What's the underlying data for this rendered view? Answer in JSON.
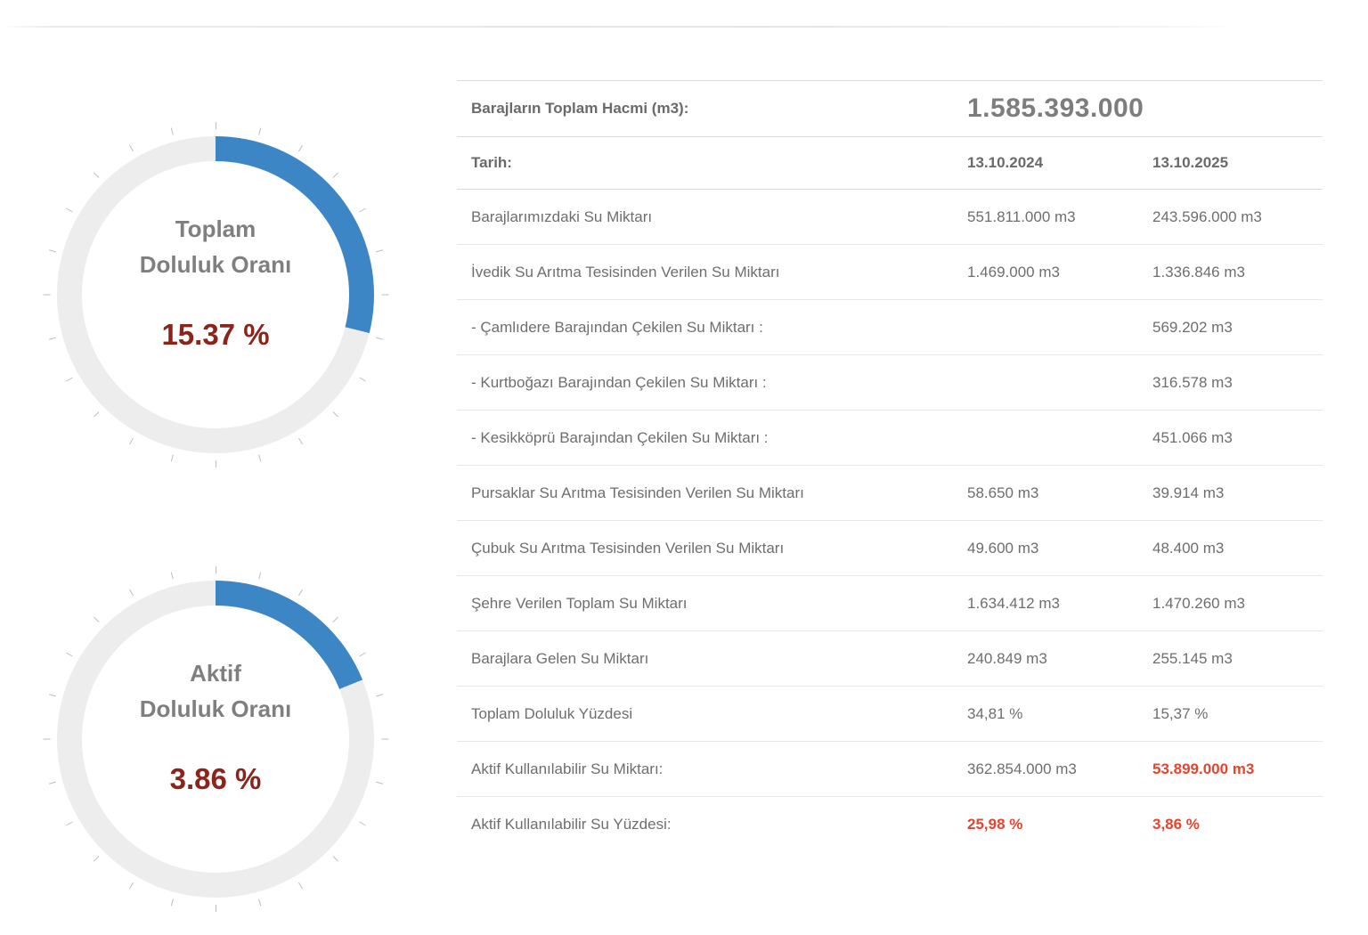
{
  "colors": {
    "gauge_arc_blue": "#3d86c6",
    "gauge_ring_gray": "#ededed",
    "gauge_tick_gray": "#bdbdbd",
    "gauge_value_dark_red": "#8b241a",
    "alert_red": "#e8432e",
    "text_gray": "#6e6e6e",
    "bold_text_gray": "#6a6a6a",
    "row_border": "#e7e7e7"
  },
  "gauges": [
    {
      "id": "total",
      "title_line1": "Toplam",
      "title_line2": "Doluluk Oranı",
      "value_label": "15.37 %",
      "value_percent": 15.37,
      "arc_degrees": 104,
      "arc_color": "#3d86c6",
      "ring_color": "#ededed"
    },
    {
      "id": "active",
      "title_line1": "Aktif",
      "title_line2": "Doluluk Oranı",
      "value_label": "3.86 %",
      "value_percent": 3.86,
      "arc_degrees": 68,
      "arc_color": "#3d86c6",
      "ring_color": "#ededed"
    }
  ],
  "summary": {
    "total_volume_label": "Barajların Toplam Hacmi (m3):",
    "total_volume_value": "1.585.393.000",
    "date_label": "Tarih:",
    "date_col1": "13.10.2024",
    "date_col2": "13.10.2025"
  },
  "table": {
    "rows": [
      {
        "label": "Barajlarımızdaki Su Miktarı",
        "col1": "551.811.000 m3",
        "col2": "243.596.000 m3"
      },
      {
        "label": "İvedik Su Arıtma Tesisinden Verilen Su Miktarı",
        "col1": "1.469.000 m3",
        "col2": "1.336.846 m3"
      },
      {
        "label": "- Çamlıdere Barajından Çekilen Su Miktarı :",
        "col1": "",
        "col2": "569.202 m3"
      },
      {
        "label": "- Kurtboğazı Barajından Çekilen Su Miktarı :",
        "col1": "",
        "col2": "316.578 m3"
      },
      {
        "label": "- Kesikköprü Barajından Çekilen Su Miktarı :",
        "col1": "",
        "col2": "451.066 m3"
      },
      {
        "label": "Pursaklar Su Arıtma Tesisinden Verilen Su Miktarı",
        "col1": "58.650 m3",
        "col2": "39.914 m3"
      },
      {
        "label": "Çubuk Su Arıtma Tesisinden Verilen Su Miktarı",
        "col1": "49.600 m3",
        "col2": "48.400 m3"
      },
      {
        "label": "Şehre Verilen Toplam Su Miktarı",
        "col1": "1.634.412 m3",
        "col2": "1.470.260 m3"
      },
      {
        "label": "Barajlara Gelen Su Miktarı",
        "col1": "240.849 m3",
        "col2": "255.145 m3"
      },
      {
        "label": "Toplam Doluluk Yüzdesi",
        "col1": "34,81 %",
        "col2": "15,37 %"
      },
      {
        "label": "Aktif Kullanılabilir Su Miktarı:",
        "col1": "362.854.000 m3",
        "col2": "53.899.000 m3",
        "col2_red": true
      },
      {
        "label": "Aktif Kullanılabilir Su Yüzdesi:",
        "col1": "25,98 %",
        "col2": "3,86 %",
        "col1_red": true,
        "col2_red": true
      }
    ]
  },
  "chart_data": [
    {
      "type": "gauge",
      "title": "Toplam Doluluk Oranı",
      "value": 15.37,
      "unit": "%",
      "value_label": "15.37 %",
      "arc_shown_degrees": 104,
      "ticks_every_degrees": 15
    },
    {
      "type": "gauge",
      "title": "Aktif Doluluk Oranı",
      "value": 3.86,
      "unit": "%",
      "value_label": "3.86 %",
      "arc_shown_degrees": 68,
      "ticks_every_degrees": 15
    }
  ]
}
